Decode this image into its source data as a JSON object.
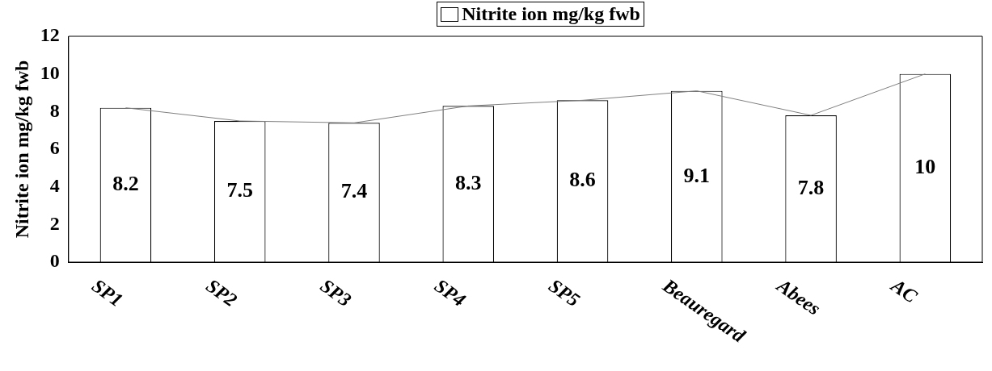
{
  "chart_data": {
    "type": "bar",
    "ylabel": "Nitrite ion mg/kg fwb",
    "categories": [
      "SP1",
      "SP2",
      "SP3",
      "SP4",
      "SP5",
      "Beauregard",
      "Abees",
      "AC"
    ],
    "series": [
      {
        "name": "Nitrite ion mg/kg fwb",
        "color": "#ffffff",
        "values": [
          8.2,
          7.5,
          7.4,
          8.3,
          8.6,
          9.1,
          7.8,
          10
        ],
        "value_labels": [
          "8.2",
          "7.5",
          "7.4",
          "8.3",
          "8.6",
          "9.1",
          "7.8",
          "10"
        ]
      },
      {
        "type": "line",
        "color": "#808080",
        "values": [
          8.2,
          7.5,
          7.4,
          8.3,
          8.6,
          9.1,
          7.8,
          10
        ]
      }
    ],
    "ylim": [
      0,
      12
    ],
    "yticks": [
      0,
      2,
      4,
      6,
      8,
      10,
      12
    ],
    "grid": false,
    "legend": "top",
    "marker": "none"
  }
}
